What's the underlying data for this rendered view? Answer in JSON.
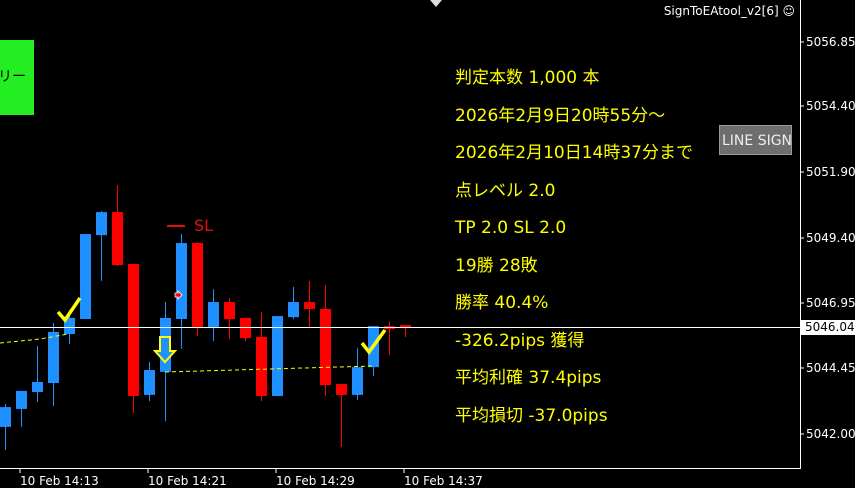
{
  "indicator": {
    "title": "SignToEAtool_v2[6]",
    "icon": "smiley-icon"
  },
  "green_button": {
    "label": "リー",
    "color": "#22ee22"
  },
  "line_sign_button": {
    "label": "LINE SIGN"
  },
  "stats": [
    "判定本数 1,000 本",
    "2026年2月9日20時55分～",
    "2026年2月10日14時37分まで",
    "点レベル 2.0",
    "TP 2.0 SL 2.0",
    "19勝 28敗",
    "勝率 40.4%",
    "-326.2pips 獲得",
    "平均利確 37.4pips",
    "平均損切 -37.0pips"
  ],
  "sl_label": "SL",
  "price_axis": [
    "5056.85",
    "5054.40",
    "5051.90",
    "5049.40",
    "5046.95",
    "5044.45",
    "5042.00"
  ],
  "current_price": "5046.04",
  "time_axis": [
    "10 Feb 14:13",
    "10 Feb 14:21",
    "10 Feb 14:29",
    "10 Feb 14:37"
  ],
  "colors": {
    "bull": "#1e90ff",
    "bear": "#ff0000",
    "signal": "#ffff00",
    "background": "#000000"
  },
  "chart_data": {
    "type": "candlestick",
    "ylim": [
      5041.0,
      5058.0
    ],
    "candles": [
      [
        5042.3,
        5043.17,
        5041.43,
        5043.05
      ],
      [
        5042.98,
        5043.66,
        5042.3,
        5043.66
      ],
      [
        5043.62,
        5045.36,
        5043.24,
        5044.0
      ],
      [
        5043.96,
        5046.23,
        5043.09,
        5045.89
      ],
      [
        5045.81,
        5046.72,
        5045.43,
        5046.42
      ],
      [
        5046.38,
        5049.59,
        5046.38,
        5049.59
      ],
      [
        5049.55,
        5050.46,
        5047.82,
        5050.42
      ],
      [
        5050.42,
        5051.44,
        5048.38,
        5048.42
      ],
      [
        5048.46,
        5048.46,
        5042.83,
        5043.47
      ],
      [
        5043.51,
        5044.75,
        5043.28,
        5044.45
      ],
      [
        5044.38,
        5047.02,
        5042.52,
        5046.42
      ],
      [
        5046.38,
        5049.59,
        5045.25,
        5049.25
      ],
      [
        5049.25,
        5049.29,
        5045.74,
        5046.08
      ],
      [
        5046.08,
        5047.51,
        5045.55,
        5047.02
      ],
      [
        5047.02,
        5047.17,
        5045.62,
        5046.38
      ],
      [
        5046.42,
        5046.42,
        5045.55,
        5045.66
      ],
      [
        5045.7,
        5046.64,
        5043.28,
        5043.47
      ],
      [
        5043.47,
        5046.49,
        5043.47,
        5046.49
      ],
      [
        5046.45,
        5047.59,
        5046.38,
        5047.02
      ],
      [
        5047.02,
        5047.82,
        5046.04,
        5046.76
      ],
      [
        5046.76,
        5047.66,
        5043.47,
        5043.88
      ],
      [
        5043.92,
        5043.92,
        5041.54,
        5043.51
      ],
      [
        5043.51,
        5045.28,
        5043.32,
        5044.56
      ],
      [
        5044.56,
        5046.11,
        5044.22,
        5046.11
      ],
      [
        5046.11,
        5046.3,
        5045.02,
        5046.0
      ],
      [
        5046.15,
        5046.15,
        5045.7,
        5046.04
      ]
    ]
  }
}
